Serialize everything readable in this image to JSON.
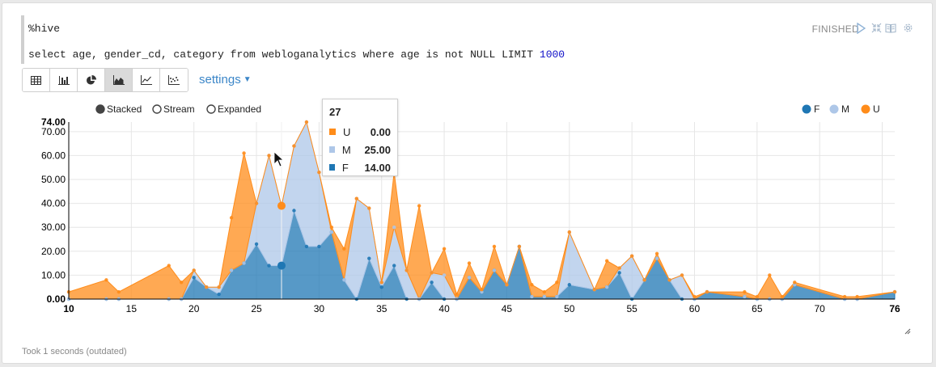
{
  "paragraph": {
    "interpreter": "%hive",
    "query_prefix": "select age, gender_cd, category from webloganalytics where age is not NULL LIMIT ",
    "query_limit": "1000",
    "status": "FINISHED",
    "footer": "Took 1 seconds (outdated)"
  },
  "toolbar": {
    "buttons": [
      {
        "name": "table",
        "icon": "table-icon"
      },
      {
        "name": "bar",
        "icon": "bar-chart-icon"
      },
      {
        "name": "pie",
        "icon": "pie-chart-icon"
      },
      {
        "name": "area",
        "icon": "area-chart-icon",
        "active": true
      },
      {
        "name": "line",
        "icon": "line-chart-icon"
      },
      {
        "name": "scatter",
        "icon": "scatter-chart-icon"
      }
    ],
    "settings_label": "settings"
  },
  "chart_modes": [
    "Stacked",
    "Stream",
    "Expanded"
  ],
  "chart_mode_selected": "Stacked",
  "tooltip": {
    "title": "27",
    "rows": [
      {
        "key": "U",
        "value": "0.00",
        "color": "#ff8c1a"
      },
      {
        "key": "M",
        "value": "25.00",
        "color": "#aec7e8"
      },
      {
        "key": "F",
        "value": "14.00",
        "color": "#1f77b4"
      }
    ]
  },
  "chart_data": {
    "type": "area",
    "stacked": true,
    "xlim": [
      10,
      76
    ],
    "ylim": [
      0,
      74
    ],
    "x_tick_labels": [
      "10",
      "15",
      "20",
      "25",
      "30",
      "35",
      "40",
      "45",
      "50",
      "55",
      "60",
      "65",
      "70",
      "76"
    ],
    "y_tick_labels": [
      "0.00",
      "10.00",
      "20.00",
      "30.00",
      "40.00",
      "50.00",
      "60.00",
      "70.00",
      "74.00"
    ],
    "grid": true,
    "legend_position": "top-right",
    "hover_x": 27,
    "x": [
      10,
      13,
      14,
      18,
      19,
      20,
      21,
      22,
      23,
      24,
      25,
      26,
      27,
      28,
      29,
      30,
      31,
      32,
      33,
      34,
      35,
      36,
      37,
      38,
      39,
      40,
      41,
      42,
      43,
      44,
      45,
      46,
      47,
      48,
      49,
      50,
      52,
      53,
      54,
      55,
      56,
      57,
      58,
      59,
      60,
      61,
      64,
      65,
      66,
      67,
      68,
      72,
      73,
      76
    ],
    "series": [
      {
        "name": "F",
        "color": "#1f77b4",
        "values": [
          0,
          0,
          0,
          0,
          0,
          9,
          5,
          2,
          12,
          15,
          23,
          14,
          14,
          37,
          22,
          22,
          28,
          8,
          0,
          17,
          5,
          14,
          0,
          0,
          7,
          0,
          0,
          9,
          3,
          12,
          6,
          22,
          1,
          1,
          1,
          6,
          4,
          5,
          11,
          0,
          8,
          17,
          8,
          0,
          0,
          3,
          1,
          0,
          0,
          0,
          6,
          0,
          0,
          3
        ]
      },
      {
        "name": "M",
        "color": "#aec7e8",
        "values": [
          0,
          0,
          0,
          0,
          0,
          3,
          0,
          3,
          0,
          0,
          17,
          46,
          25,
          27,
          52,
          31,
          0,
          0,
          42,
          21,
          2,
          16,
          12,
          0,
          4,
          10,
          0,
          0,
          0,
          0,
          0,
          0,
          0,
          0,
          0,
          22,
          0,
          0,
          2,
          18,
          0,
          0,
          0,
          10,
          0,
          0,
          0,
          0,
          0,
          0,
          0,
          0,
          0,
          0
        ]
      },
      {
        "name": "U",
        "color": "#ff8c1a",
        "values": [
          3,
          8,
          3,
          14,
          7,
          0,
          0,
          0,
          22,
          46,
          0,
          0,
          0,
          0,
          0,
          0,
          2,
          13,
          0,
          0,
          0,
          23,
          0,
          39,
          0,
          11,
          2,
          6,
          1,
          10,
          0,
          0,
          5,
          2,
          6,
          0,
          0,
          11,
          0,
          0,
          0,
          2,
          0,
          0,
          1,
          0,
          2,
          1,
          10,
          1,
          1,
          1,
          1,
          0
        ]
      }
    ]
  }
}
